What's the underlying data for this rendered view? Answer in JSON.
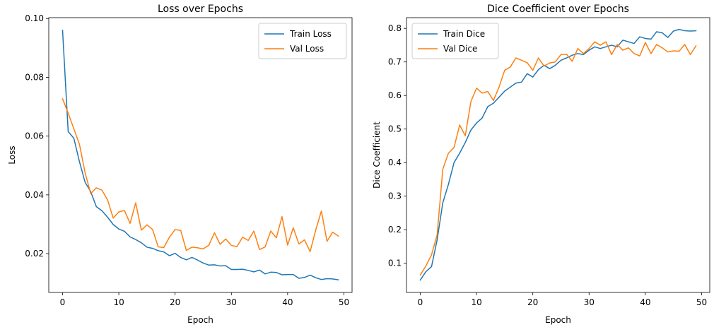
{
  "chart_data": [
    {
      "type": "line",
      "title": "Loss over Epochs",
      "xlabel": "Epoch",
      "ylabel": "Loss",
      "xlim": [
        -2.45,
        51.45
      ],
      "ylim": [
        0.0068,
        0.1003
      ],
      "xticks": [
        0,
        10,
        20,
        30,
        40,
        50
      ],
      "yticks": [
        0.02,
        0.04,
        0.06,
        0.08,
        0.1
      ],
      "ytick_labels": [
        "0.02",
        "0.04",
        "0.06",
        "0.08",
        "0.10"
      ],
      "legend_position": "top-right",
      "grid": false,
      "x": [
        0,
        1,
        2,
        3,
        4,
        5,
        6,
        7,
        8,
        9,
        10,
        11,
        12,
        13,
        14,
        15,
        16,
        17,
        18,
        19,
        20,
        21,
        22,
        23,
        24,
        25,
        26,
        27,
        28,
        29,
        30,
        31,
        32,
        33,
        34,
        35,
        36,
        37,
        38,
        39,
        40,
        41,
        42,
        43,
        44,
        45,
        46,
        47,
        48,
        49
      ],
      "series": [
        {
          "name": "Train Loss",
          "color": "#1f77b4",
          "values": [
            0.096,
            0.0615,
            0.0593,
            0.0513,
            0.0443,
            0.0411,
            0.036,
            0.0346,
            0.0324,
            0.0299,
            0.0284,
            0.0276,
            0.0257,
            0.0248,
            0.0237,
            0.0222,
            0.0218,
            0.021,
            0.0206,
            0.0193,
            0.0201,
            0.0187,
            0.0179,
            0.0187,
            0.0178,
            0.0168,
            0.0161,
            0.0162,
            0.0158,
            0.0159,
            0.0146,
            0.0146,
            0.0147,
            0.0143,
            0.0138,
            0.0144,
            0.0131,
            0.0137,
            0.0136,
            0.0128,
            0.0129,
            0.0129,
            0.0116,
            0.0119,
            0.0127,
            0.0118,
            0.0112,
            0.0115,
            0.0114,
            0.0111
          ]
        },
        {
          "name": "Val Loss",
          "color": "#ff7f0e",
          "values": [
            0.0727,
            0.0678,
            0.0625,
            0.0572,
            0.0476,
            0.0404,
            0.0424,
            0.0416,
            0.0383,
            0.0321,
            0.0342,
            0.0347,
            0.0303,
            0.0373,
            0.028,
            0.0298,
            0.0282,
            0.0223,
            0.0221,
            0.0256,
            0.0282,
            0.0279,
            0.0211,
            0.0222,
            0.022,
            0.0216,
            0.0229,
            0.0271,
            0.0232,
            0.025,
            0.0228,
            0.0224,
            0.0256,
            0.0245,
            0.0277,
            0.0214,
            0.0223,
            0.0277,
            0.0254,
            0.0326,
            0.0229,
            0.0288,
            0.0233,
            0.0247,
            0.0207,
            0.0281,
            0.0345,
            0.0242,
            0.0273,
            0.026
          ]
        }
      ]
    },
    {
      "type": "line",
      "title": "Dice Coefficient over Epochs",
      "xlabel": "Epoch",
      "ylabel": "Dice Coefficient",
      "xlim": [
        -2.45,
        51.45
      ],
      "ylim": [
        0.013,
        0.832
      ],
      "xticks": [
        0,
        10,
        20,
        30,
        40,
        50
      ],
      "yticks": [
        0.1,
        0.2,
        0.3,
        0.4,
        0.5,
        0.6,
        0.7,
        0.8
      ],
      "ytick_labels": [
        "0.1",
        "0.2",
        "0.3",
        "0.4",
        "0.5",
        "0.6",
        "0.7",
        "0.8"
      ],
      "legend_position": "top-left",
      "grid": false,
      "x": [
        0,
        1,
        2,
        3,
        4,
        5,
        6,
        7,
        8,
        9,
        10,
        11,
        12,
        13,
        14,
        15,
        16,
        17,
        18,
        19,
        20,
        21,
        22,
        23,
        24,
        25,
        26,
        27,
        28,
        29,
        30,
        31,
        32,
        33,
        34,
        35,
        36,
        37,
        38,
        39,
        40,
        41,
        42,
        43,
        44,
        45,
        46,
        47,
        48,
        49
      ],
      "series": [
        {
          "name": "Train Dice",
          "color": "#1f77b4",
          "values": [
            0.05,
            0.075,
            0.09,
            0.17,
            0.28,
            0.335,
            0.4,
            0.428,
            0.46,
            0.497,
            0.518,
            0.533,
            0.567,
            0.577,
            0.595,
            0.613,
            0.625,
            0.637,
            0.64,
            0.665,
            0.655,
            0.677,
            0.69,
            0.68,
            0.69,
            0.705,
            0.712,
            0.72,
            0.725,
            0.722,
            0.735,
            0.745,
            0.74,
            0.745,
            0.75,
            0.745,
            0.765,
            0.76,
            0.755,
            0.775,
            0.77,
            0.768,
            0.79,
            0.787,
            0.773,
            0.792,
            0.797,
            0.793,
            0.792,
            0.793
          ]
        },
        {
          "name": "Val Dice",
          "color": "#ff7f0e",
          "values": [
            0.065,
            0.092,
            0.125,
            0.185,
            0.38,
            0.428,
            0.445,
            0.512,
            0.48,
            0.582,
            0.622,
            0.607,
            0.612,
            0.585,
            0.625,
            0.675,
            0.685,
            0.712,
            0.705,
            0.698,
            0.675,
            0.712,
            0.688,
            0.697,
            0.7,
            0.722,
            0.723,
            0.702,
            0.74,
            0.725,
            0.74,
            0.76,
            0.75,
            0.76,
            0.722,
            0.752,
            0.735,
            0.742,
            0.725,
            0.718,
            0.758,
            0.725,
            0.752,
            0.742,
            0.73,
            0.733,
            0.732,
            0.752,
            0.722,
            0.748
          ]
        }
      ]
    }
  ]
}
